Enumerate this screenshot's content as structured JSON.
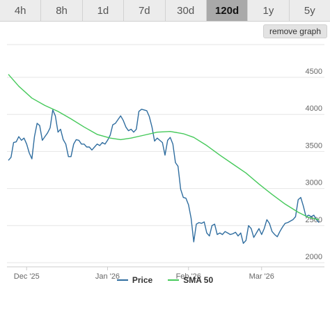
{
  "ranges": [
    "4h",
    "8h",
    "1d",
    "7d",
    "30d",
    "120d",
    "1y",
    "5y"
  ],
  "active_range": "120d",
  "remove_graph_label": "remove graph",
  "colors": {
    "price": "#2f6d9f",
    "sma": "#45c95a",
    "active_tab": "#a9a9a9"
  },
  "chart_data": {
    "type": "line",
    "title": "",
    "xlabel": "",
    "ylabel": "",
    "ylim": [
      2000,
      4500
    ],
    "yticks": [
      2000,
      2500,
      3000,
      3500,
      4000,
      4500
    ],
    "xlim": [
      "2025-11-24",
      "2026-03-24"
    ],
    "xticks": [
      {
        "date": "2025-12-01",
        "label": "Dec '25"
      },
      {
        "date": "2026-01-01",
        "label": "Jan '26"
      },
      {
        "date": "2026-02-01",
        "label": "Feb '26"
      },
      {
        "date": "2026-03-01",
        "label": "Mar '26"
      }
    ],
    "legend_position": "bottom",
    "grid": true,
    "series": [
      {
        "name": "Price",
        "points": [
          [
            "2025-11-24",
            3380
          ],
          [
            "2025-11-25",
            3420
          ],
          [
            "2025-11-26",
            3620
          ],
          [
            "2025-11-27",
            3630
          ],
          [
            "2025-11-28",
            3700
          ],
          [
            "2025-11-29",
            3650
          ],
          [
            "2025-11-30",
            3680
          ],
          [
            "2025-12-01",
            3600
          ],
          [
            "2025-12-02",
            3480
          ],
          [
            "2025-12-03",
            3400
          ],
          [
            "2025-12-04",
            3700
          ],
          [
            "2025-12-05",
            3880
          ],
          [
            "2025-12-06",
            3850
          ],
          [
            "2025-12-07",
            3650
          ],
          [
            "2025-12-08",
            3700
          ],
          [
            "2025-12-09",
            3750
          ],
          [
            "2025-12-10",
            3820
          ],
          [
            "2025-12-11",
            4060
          ],
          [
            "2025-12-12",
            3980
          ],
          [
            "2025-12-13",
            3760
          ],
          [
            "2025-12-14",
            3800
          ],
          [
            "2025-12-15",
            3660
          ],
          [
            "2025-12-16",
            3600
          ],
          [
            "2025-12-17",
            3430
          ],
          [
            "2025-12-18",
            3430
          ],
          [
            "2025-12-19",
            3600
          ],
          [
            "2025-12-20",
            3660
          ],
          [
            "2025-12-21",
            3650
          ],
          [
            "2025-12-22",
            3600
          ],
          [
            "2025-12-23",
            3600
          ],
          [
            "2025-12-24",
            3560
          ],
          [
            "2025-12-25",
            3560
          ],
          [
            "2025-12-26",
            3520
          ],
          [
            "2025-12-27",
            3560
          ],
          [
            "2025-12-28",
            3600
          ],
          [
            "2025-12-29",
            3580
          ],
          [
            "2025-12-30",
            3620
          ],
          [
            "2025-12-31",
            3600
          ],
          [
            "2026-01-01",
            3650
          ],
          [
            "2026-01-02",
            3720
          ],
          [
            "2026-01-03",
            3860
          ],
          [
            "2026-01-04",
            3880
          ],
          [
            "2026-01-05",
            3930
          ],
          [
            "2026-01-06",
            3980
          ],
          [
            "2026-01-07",
            3920
          ],
          [
            "2026-01-08",
            3830
          ],
          [
            "2026-01-09",
            3780
          ],
          [
            "2026-01-10",
            3800
          ],
          [
            "2026-01-11",
            3760
          ],
          [
            "2026-01-12",
            3800
          ],
          [
            "2026-01-13",
            4040
          ],
          [
            "2026-01-14",
            4070
          ],
          [
            "2026-01-15",
            4060
          ],
          [
            "2026-01-16",
            4050
          ],
          [
            "2026-01-17",
            3970
          ],
          [
            "2026-01-18",
            3830
          ],
          [
            "2026-01-19",
            3640
          ],
          [
            "2026-01-20",
            3680
          ],
          [
            "2026-01-21",
            3650
          ],
          [
            "2026-01-22",
            3620
          ],
          [
            "2026-01-23",
            3450
          ],
          [
            "2026-01-24",
            3650
          ],
          [
            "2026-01-25",
            3690
          ],
          [
            "2026-01-26",
            3600
          ],
          [
            "2026-01-27",
            3350
          ],
          [
            "2026-01-28",
            3300
          ],
          [
            "2026-01-29",
            2990
          ],
          [
            "2026-01-30",
            2880
          ],
          [
            "2026-01-31",
            2870
          ],
          [
            "2026-02-01",
            2780
          ],
          [
            "2026-02-02",
            2600
          ],
          [
            "2026-02-03",
            2280
          ],
          [
            "2026-02-04",
            2520
          ],
          [
            "2026-02-05",
            2540
          ],
          [
            "2026-02-06",
            2530
          ],
          [
            "2026-02-07",
            2550
          ],
          [
            "2026-02-08",
            2400
          ],
          [
            "2026-02-09",
            2360
          ],
          [
            "2026-02-10",
            2500
          ],
          [
            "2026-02-11",
            2520
          ],
          [
            "2026-02-12",
            2380
          ],
          [
            "2026-02-13",
            2400
          ],
          [
            "2026-02-14",
            2380
          ],
          [
            "2026-02-15",
            2420
          ],
          [
            "2026-02-16",
            2400
          ],
          [
            "2026-02-17",
            2380
          ],
          [
            "2026-02-18",
            2390
          ],
          [
            "2026-02-19",
            2410
          ],
          [
            "2026-02-20",
            2360
          ],
          [
            "2026-02-21",
            2400
          ],
          [
            "2026-02-22",
            2260
          ],
          [
            "2026-02-23",
            2300
          ],
          [
            "2026-02-24",
            2500
          ],
          [
            "2026-02-25",
            2460
          ],
          [
            "2026-02-26",
            2340
          ],
          [
            "2026-02-27",
            2400
          ],
          [
            "2026-02-28",
            2460
          ],
          [
            "2026-03-01",
            2380
          ],
          [
            "2026-03-02",
            2460
          ],
          [
            "2026-03-03",
            2580
          ],
          [
            "2026-03-04",
            2530
          ],
          [
            "2026-03-05",
            2420
          ],
          [
            "2026-03-06",
            2380
          ],
          [
            "2026-03-07",
            2350
          ],
          [
            "2026-03-08",
            2420
          ],
          [
            "2026-03-09",
            2480
          ],
          [
            "2026-03-10",
            2530
          ],
          [
            "2026-03-11",
            2540
          ],
          [
            "2026-03-12",
            2560
          ],
          [
            "2026-03-13",
            2580
          ],
          [
            "2026-03-14",
            2620
          ],
          [
            "2026-03-15",
            2850
          ],
          [
            "2026-03-16",
            2880
          ],
          [
            "2026-03-17",
            2760
          ],
          [
            "2026-03-18",
            2620
          ],
          [
            "2026-03-19",
            2640
          ],
          [
            "2026-03-20",
            2620
          ],
          [
            "2026-03-21",
            2640
          ],
          [
            "2026-03-22",
            2580
          ],
          [
            "2026-03-23",
            2540
          ]
        ]
      },
      {
        "name": "SMA 50",
        "points": [
          [
            "2025-11-24",
            4540
          ],
          [
            "2025-11-28",
            4380
          ],
          [
            "2025-12-03",
            4220
          ],
          [
            "2025-12-08",
            4120
          ],
          [
            "2025-12-13",
            4040
          ],
          [
            "2025-12-18",
            3940
          ],
          [
            "2025-12-23",
            3830
          ],
          [
            "2025-12-28",
            3730
          ],
          [
            "2026-01-02",
            3680
          ],
          [
            "2026-01-06",
            3660
          ],
          [
            "2026-01-10",
            3680
          ],
          [
            "2026-01-15",
            3720
          ],
          [
            "2026-01-20",
            3760
          ],
          [
            "2026-01-25",
            3770
          ],
          [
            "2026-01-30",
            3740
          ],
          [
            "2026-02-03",
            3690
          ],
          [
            "2026-02-08",
            3580
          ],
          [
            "2026-02-13",
            3450
          ],
          [
            "2026-02-18",
            3330
          ],
          [
            "2026-02-23",
            3210
          ],
          [
            "2026-02-28",
            3060
          ],
          [
            "2026-03-05",
            2920
          ],
          [
            "2026-03-10",
            2790
          ],
          [
            "2026-03-15",
            2680
          ],
          [
            "2026-03-19",
            2610
          ],
          [
            "2026-03-23",
            2580
          ]
        ]
      }
    ]
  }
}
